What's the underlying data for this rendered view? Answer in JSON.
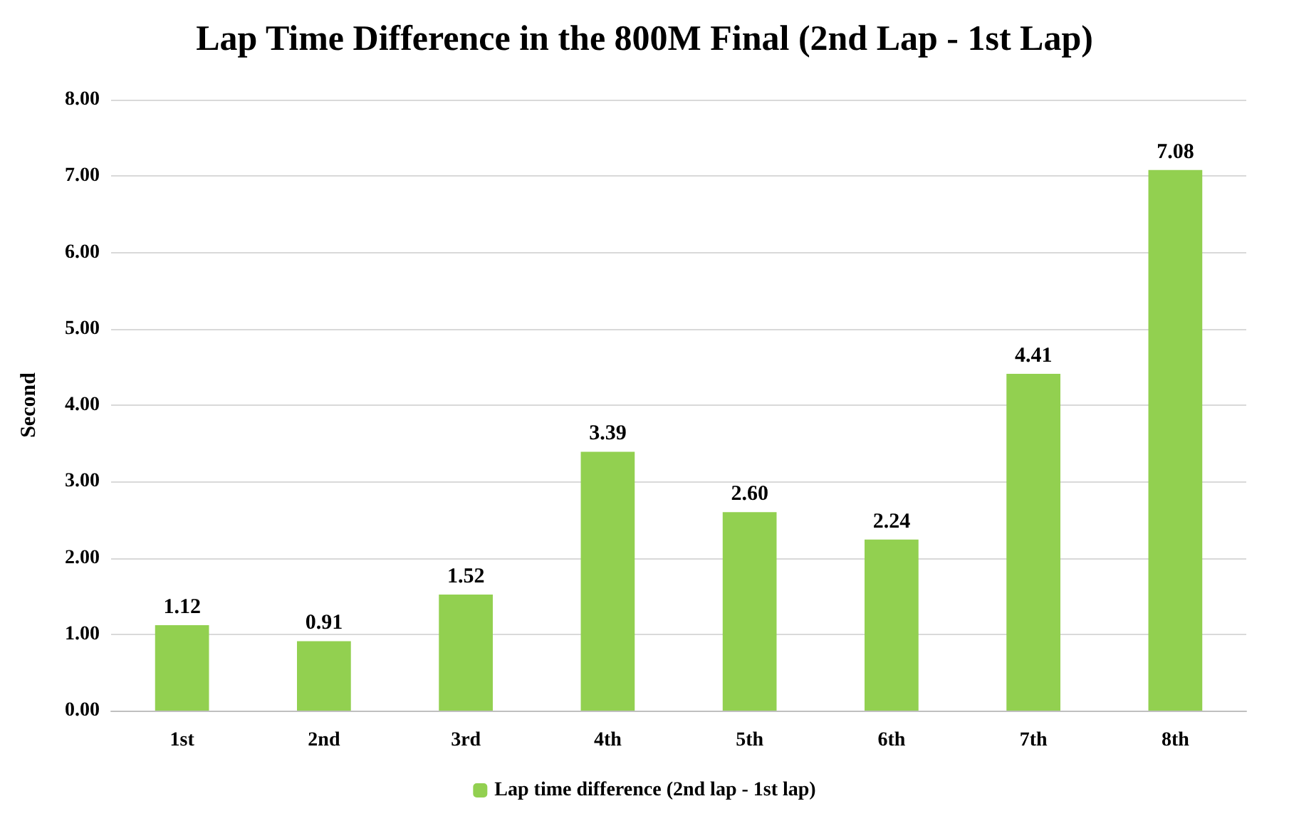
{
  "chart_data": {
    "type": "bar",
    "title": "Lap Time Difference in the 800M Final (2nd Lap - 1st Lap)",
    "ylabel": "Second",
    "categories": [
      "1st",
      "2nd",
      "3rd",
      "4th",
      "5th",
      "6th",
      "7th",
      "8th"
    ],
    "series": [
      {
        "name": "Lap time difference (2nd lap - 1st lap)",
        "color": "#92d050",
        "values": [
          1.12,
          0.91,
          1.52,
          3.39,
          2.6,
          2.24,
          4.41,
          7.08
        ],
        "value_labels": [
          "1.12",
          "0.91",
          "1.52",
          "3.39",
          "2.60",
          "2.24",
          "4.41",
          "7.08"
        ]
      }
    ],
    "ylim": [
      0,
      8
    ],
    "yticks": [
      {
        "value": 0,
        "label": "0.00"
      },
      {
        "value": 1,
        "label": "1.00"
      },
      {
        "value": 2,
        "label": "2.00"
      },
      {
        "value": 3,
        "label": "3.00"
      },
      {
        "value": 4,
        "label": "4.00"
      },
      {
        "value": 5,
        "label": "5.00"
      },
      {
        "value": 6,
        "label": "6.00"
      },
      {
        "value": 7,
        "label": "7.00"
      },
      {
        "value": 8,
        "label": "8.00"
      }
    ],
    "grid": "y",
    "legend": "bottom"
  }
}
